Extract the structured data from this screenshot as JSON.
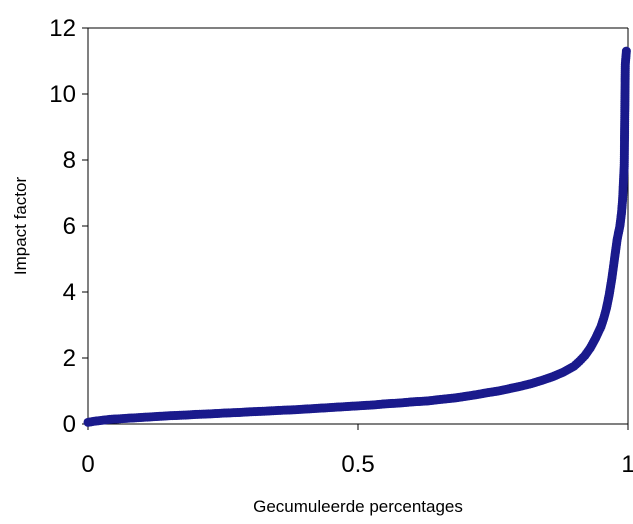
{
  "chart_data": {
    "type": "scatter",
    "title": "",
    "xlabel": "Gecumuleerde percentages",
    "ylabel": "Impact factor",
    "xlim": [
      0,
      1
    ],
    "ylim": [
      0,
      12
    ],
    "x_ticks": [
      0,
      0.5,
      1
    ],
    "x_tick_labels": [
      "0",
      "0.5",
      "1"
    ],
    "y_ticks": [
      0,
      2,
      4,
      6,
      8,
      10,
      12
    ],
    "y_tick_labels": [
      "0",
      "2",
      "4",
      "6",
      "8",
      "10",
      "12"
    ],
    "grid": false,
    "legend": "none",
    "marker_color": "#1a1a8c",
    "series": [
      {
        "points": [
          [
            0.0,
            0.05
          ],
          [
            0.01,
            0.08
          ],
          [
            0.02,
            0.1
          ],
          [
            0.03,
            0.12
          ],
          [
            0.04,
            0.14
          ],
          [
            0.05,
            0.15
          ],
          [
            0.07,
            0.17
          ],
          [
            0.09,
            0.19
          ],
          [
            0.11,
            0.21
          ],
          [
            0.13,
            0.23
          ],
          [
            0.15,
            0.25
          ],
          [
            0.18,
            0.27
          ],
          [
            0.2,
            0.29
          ],
          [
            0.23,
            0.31
          ],
          [
            0.25,
            0.33
          ],
          [
            0.28,
            0.35
          ],
          [
            0.3,
            0.37
          ],
          [
            0.33,
            0.39
          ],
          [
            0.35,
            0.41
          ],
          [
            0.38,
            0.43
          ],
          [
            0.4,
            0.45
          ],
          [
            0.43,
            0.48
          ],
          [
            0.45,
            0.5
          ],
          [
            0.48,
            0.53
          ],
          [
            0.5,
            0.55
          ],
          [
            0.53,
            0.58
          ],
          [
            0.55,
            0.61
          ],
          [
            0.58,
            0.64
          ],
          [
            0.6,
            0.67
          ],
          [
            0.63,
            0.7
          ],
          [
            0.65,
            0.74
          ],
          [
            0.68,
            0.79
          ],
          [
            0.7,
            0.84
          ],
          [
            0.72,
            0.89
          ],
          [
            0.74,
            0.95
          ],
          [
            0.76,
            1.0
          ],
          [
            0.78,
            1.07
          ],
          [
            0.8,
            1.14
          ],
          [
            0.82,
            1.22
          ],
          [
            0.84,
            1.32
          ],
          [
            0.86,
            1.43
          ],
          [
            0.88,
            1.57
          ],
          [
            0.9,
            1.75
          ],
          [
            0.91,
            1.9
          ],
          [
            0.92,
            2.07
          ],
          [
            0.93,
            2.3
          ],
          [
            0.94,
            2.6
          ],
          [
            0.95,
            2.95
          ],
          [
            0.955,
            3.2
          ],
          [
            0.96,
            3.5
          ],
          [
            0.965,
            3.9
          ],
          [
            0.97,
            4.4
          ],
          [
            0.975,
            5.0
          ],
          [
            0.98,
            5.6
          ],
          [
            0.985,
            6.0
          ],
          [
            0.988,
            6.4
          ],
          [
            0.99,
            6.8
          ],
          [
            0.992,
            7.5
          ],
          [
            0.993,
            7.8
          ],
          [
            0.995,
            10.9
          ],
          [
            0.997,
            11.3
          ]
        ]
      }
    ]
  }
}
